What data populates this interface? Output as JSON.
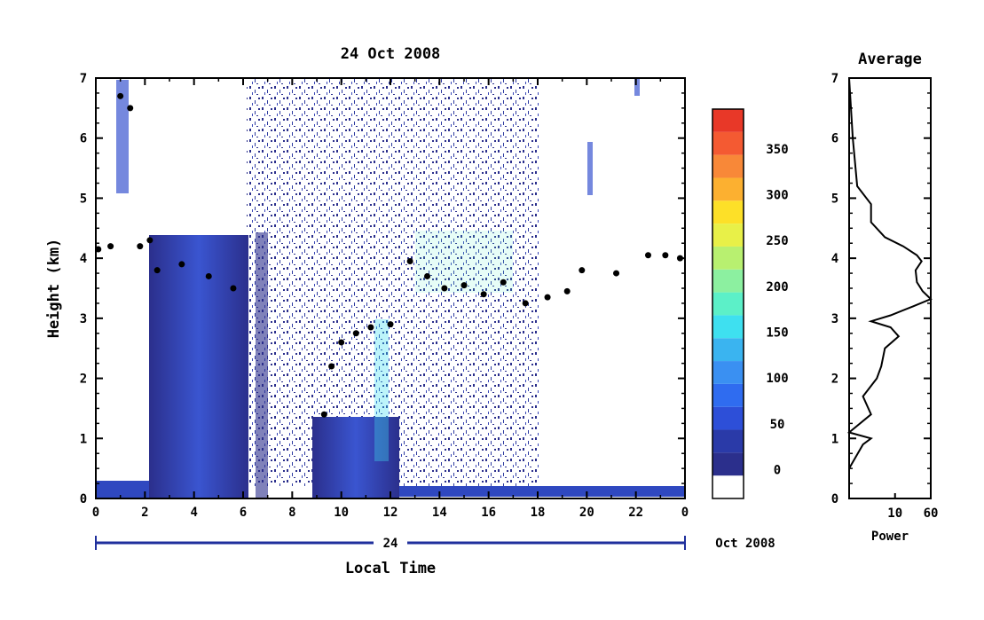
{
  "chart_data": [
    {
      "type": "heatmap",
      "title": "24 Oct 2008",
      "xlabel": "Local Time",
      "ylabel": "Height (km)",
      "xlim": [
        0,
        24
      ],
      "ylim": [
        0,
        7
      ],
      "x_tick_labels": [
        "0",
        "2",
        "4",
        "6",
        "8",
        "10",
        "12",
        "14",
        "16",
        "18",
        "20",
        "22",
        "0"
      ],
      "y_tick_labels": [
        "0",
        "1",
        "2",
        "3",
        "4",
        "5",
        "6",
        "7"
      ],
      "date_bar": {
        "day_label": "24",
        "month_label": "Oct 2008"
      },
      "colorbar": {
        "levels": [
          "0",
          "50",
          "100",
          "150",
          "200",
          "250",
          "300",
          "350"
        ],
        "range": [
          0,
          375
        ],
        "colors": [
          "#ffffff",
          "#2b2f8c",
          "#2a3aa8",
          "#2d4fd8",
          "#2f6cf0",
          "#3a90f2",
          "#3ab4f0",
          "#3ee0f0",
          "#5cf0c8",
          "#8cf0a0",
          "#b8f070",
          "#e8f048",
          "#fde028",
          "#fcb030",
          "#f88838",
          "#f45a32",
          "#e83828"
        ]
      },
      "layer_trace": [
        {
          "x": 0.1,
          "y": 4.15
        },
        {
          "x": 0.6,
          "y": 4.2
        },
        {
          "x": 1.0,
          "y": 6.7
        },
        {
          "x": 1.4,
          "y": 6.5
        },
        {
          "x": 1.8,
          "y": 4.2
        },
        {
          "x": 2.2,
          "y": 4.3
        },
        {
          "x": 2.5,
          "y": 3.8
        },
        {
          "x": 3.5,
          "y": 3.9
        },
        {
          "x": 4.6,
          "y": 3.7
        },
        {
          "x": 5.6,
          "y": 3.5
        },
        {
          "x": 9.3,
          "y": 1.4
        },
        {
          "x": 9.6,
          "y": 2.2
        },
        {
          "x": 10.0,
          "y": 2.6
        },
        {
          "x": 10.6,
          "y": 2.75
        },
        {
          "x": 11.2,
          "y": 2.85
        },
        {
          "x": 12.0,
          "y": 2.9
        },
        {
          "x": 12.8,
          "y": 3.95
        },
        {
          "x": 13.5,
          "y": 3.7
        },
        {
          "x": 14.2,
          "y": 3.5
        },
        {
          "x": 15.0,
          "y": 3.55
        },
        {
          "x": 15.8,
          "y": 3.4
        },
        {
          "x": 16.6,
          "y": 3.6
        },
        {
          "x": 17.5,
          "y": 3.25
        },
        {
          "x": 18.4,
          "y": 3.35
        },
        {
          "x": 19.2,
          "y": 3.45
        },
        {
          "x": 19.8,
          "y": 3.8
        },
        {
          "x": 21.2,
          "y": 3.75
        },
        {
          "x": 22.5,
          "y": 4.05
        },
        {
          "x": 23.2,
          "y": 4.05
        },
        {
          "x": 23.8,
          "y": 4.0
        }
      ]
    },
    {
      "type": "line",
      "title": "Average",
      "xlabel": "Power",
      "x_tick_labels": [
        "10",
        "60"
      ],
      "y_tick_labels": [
        "0",
        "1",
        "2",
        "3",
        "4",
        "5",
        "6",
        "7"
      ],
      "ylim": [
        0,
        7
      ],
      "profile": [
        {
          "y": 0.0,
          "x": 1
        },
        {
          "y": 0.5,
          "x": 1
        },
        {
          "y": 0.9,
          "x": 2
        },
        {
          "y": 1.0,
          "x": 3
        },
        {
          "y": 1.1,
          "x": 1
        },
        {
          "y": 1.4,
          "x": 3
        },
        {
          "y": 1.7,
          "x": 2
        },
        {
          "y": 2.0,
          "x": 4
        },
        {
          "y": 2.2,
          "x": 5
        },
        {
          "y": 2.5,
          "x": 6
        },
        {
          "y": 2.7,
          "x": 12
        },
        {
          "y": 2.85,
          "x": 8
        },
        {
          "y": 2.95,
          "x": 3
        },
        {
          "y": 3.05,
          "x": 8
        },
        {
          "y": 3.2,
          "x": 25
        },
        {
          "y": 3.32,
          "x": 60
        },
        {
          "y": 3.45,
          "x": 40
        },
        {
          "y": 3.6,
          "x": 30
        },
        {
          "y": 3.8,
          "x": 28
        },
        {
          "y": 3.95,
          "x": 38
        },
        {
          "y": 4.05,
          "x": 30
        },
        {
          "y": 4.2,
          "x": 15
        },
        {
          "y": 4.35,
          "x": 6
        },
        {
          "y": 4.6,
          "x": 3
        },
        {
          "y": 4.9,
          "x": 3
        },
        {
          "y": 5.2,
          "x": 1.5
        },
        {
          "y": 6.0,
          "x": 1.2
        },
        {
          "y": 7.0,
          "x": 1
        }
      ]
    }
  ]
}
